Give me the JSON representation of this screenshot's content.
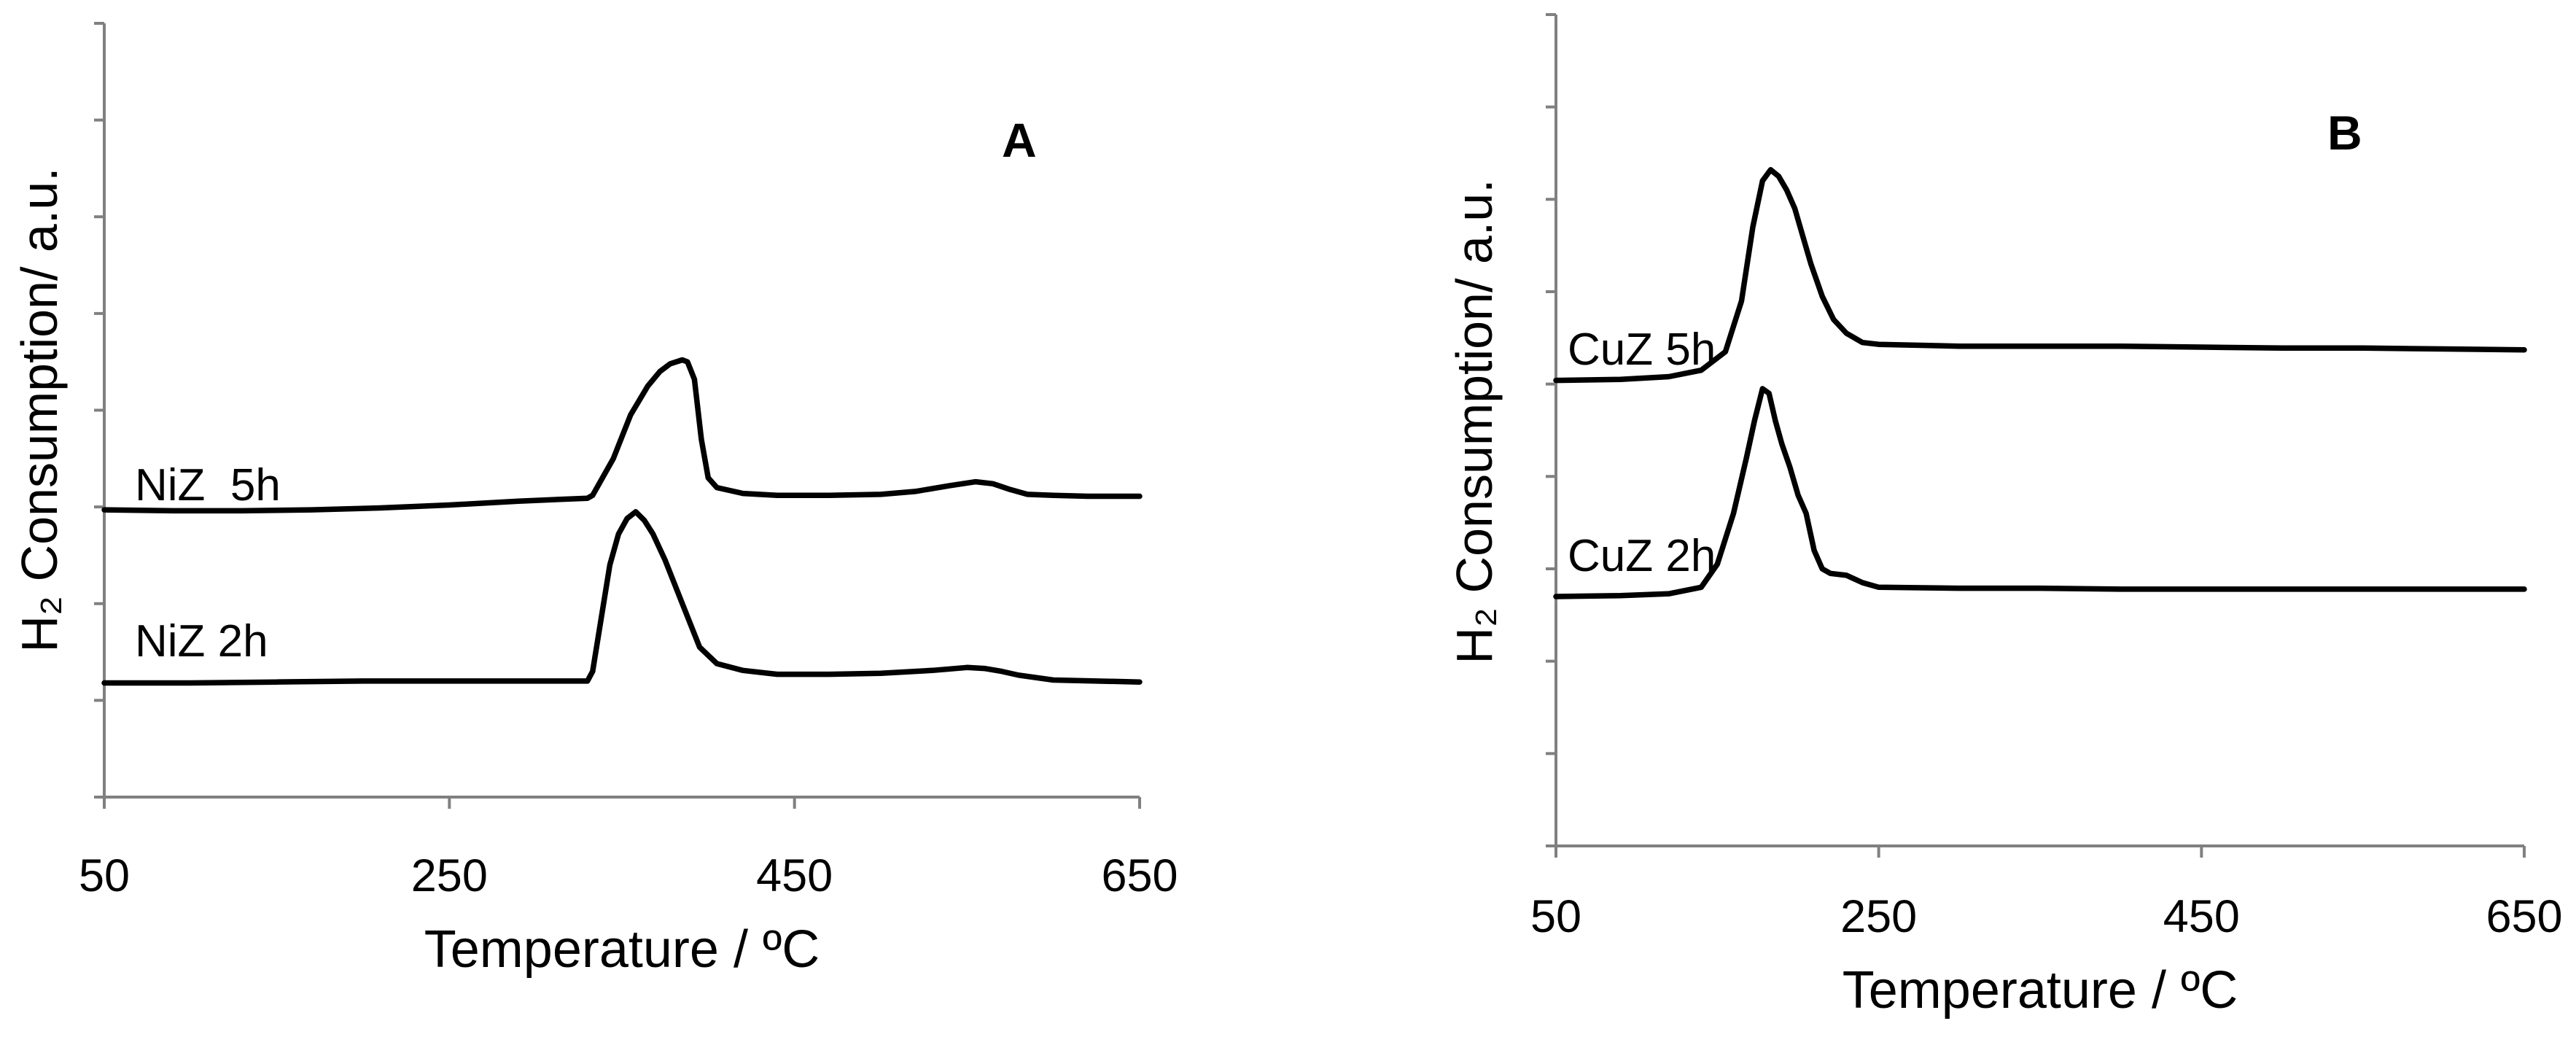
{
  "chart_data": [
    {
      "type": "line",
      "panel_label": "A",
      "xlabel": "Temperature / ºC",
      "ylabel": "H₂ Consumption/ a.u.",
      "xlim": [
        50,
        650
      ],
      "ylim": [
        0,
        8
      ],
      "x_ticks": [
        50,
        250,
        450,
        650
      ],
      "x_tick_labels": [
        "50",
        "250",
        "450",
        "650"
      ],
      "y_ticks": [
        0,
        1,
        2,
        3,
        4,
        5,
        6,
        7,
        8
      ],
      "grid": false,
      "series": [
        {
          "name": "NiZ  5h",
          "x": [
            50,
            90,
            130,
            170,
            210,
            250,
            290,
            330,
            333,
            345,
            355,
            365,
            372,
            378,
            385,
            388,
            392,
            396,
            400,
            405,
            420,
            440,
            470,
            500,
            520,
            540,
            555,
            565,
            575,
            585,
            600,
            620,
            650
          ],
          "y": [
            2.97,
            2.96,
            2.96,
            2.97,
            2.99,
            3.02,
            3.06,
            3.09,
            3.12,
            3.5,
            3.95,
            4.25,
            4.4,
            4.48,
            4.52,
            4.5,
            4.32,
            3.7,
            3.3,
            3.2,
            3.14,
            3.12,
            3.12,
            3.13,
            3.16,
            3.22,
            3.26,
            3.24,
            3.18,
            3.13,
            3.12,
            3.11,
            3.11
          ]
        },
        {
          "name": "NiZ 2h",
          "x": [
            50,
            100,
            150,
            200,
            250,
            300,
            330,
            333,
            338,
            343,
            348,
            353,
            358,
            363,
            368,
            375,
            385,
            395,
            405,
            420,
            440,
            470,
            500,
            530,
            550,
            560,
            570,
            580,
            600,
            650
          ],
          "y": [
            1.18,
            1.18,
            1.19,
            1.2,
            1.2,
            1.2,
            1.2,
            1.3,
            1.85,
            2.4,
            2.72,
            2.88,
            2.95,
            2.86,
            2.72,
            2.45,
            2.0,
            1.55,
            1.38,
            1.31,
            1.27,
            1.27,
            1.28,
            1.31,
            1.34,
            1.33,
            1.3,
            1.26,
            1.21,
            1.19
          ]
        }
      ]
    },
    {
      "type": "line",
      "panel_label": "B",
      "xlabel": "Temperature / ºC",
      "ylabel": "H₂ Consumption/ a.u.",
      "xlim": [
        50,
        650
      ],
      "ylim": [
        0,
        9
      ],
      "x_ticks": [
        50,
        250,
        450,
        650
      ],
      "x_tick_labels": [
        "50",
        "250",
        "450",
        "650"
      ],
      "y_ticks": [
        0,
        1,
        2,
        3,
        4,
        5,
        6,
        7,
        8,
        9
      ],
      "grid": false,
      "series": [
        {
          "name": "CuZ 5h",
          "x": [
            50,
            90,
            120,
            140,
            155,
            165,
            172,
            178,
            183,
            188,
            193,
            198,
            203,
            208,
            215,
            222,
            230,
            240,
            250,
            300,
            350,
            400,
            450,
            500,
            550,
            600,
            650
          ],
          "y": [
            5.04,
            5.05,
            5.08,
            5.15,
            5.35,
            5.9,
            6.7,
            7.2,
            7.32,
            7.25,
            7.1,
            6.9,
            6.6,
            6.3,
            5.95,
            5.7,
            5.55,
            5.45,
            5.43,
            5.41,
            5.41,
            5.41,
            5.4,
            5.39,
            5.39,
            5.38,
            5.37
          ]
        },
        {
          "name": "CuZ 2h",
          "x": [
            50,
            90,
            120,
            140,
            150,
            160,
            168,
            173,
            178,
            182,
            186,
            190,
            195,
            200,
            205,
            210,
            215,
            220,
            230,
            240,
            250,
            300,
            350,
            400,
            450,
            500,
            550,
            600,
            650
          ],
          "y": [
            2.7,
            2.71,
            2.73,
            2.8,
            3.05,
            3.6,
            4.2,
            4.6,
            4.95,
            4.9,
            4.6,
            4.35,
            4.1,
            3.8,
            3.6,
            3.2,
            3.0,
            2.95,
            2.93,
            2.85,
            2.8,
            2.79,
            2.79,
            2.78,
            2.78,
            2.78,
            2.78,
            2.78,
            2.78
          ]
        }
      ]
    }
  ]
}
